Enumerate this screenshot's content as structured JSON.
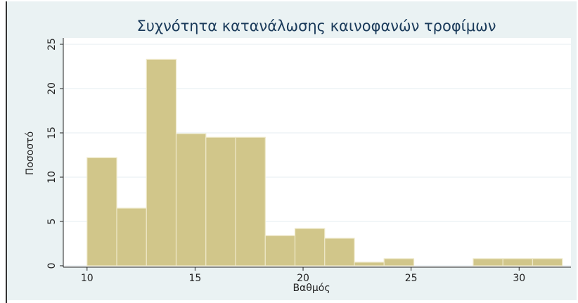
{
  "chart_data": {
    "type": "histogram",
    "title": "Συχνότητα κατανάλωσης καινοφανών τροφίμων",
    "x_label": "Βαθμός",
    "y_label": "Ποσοστό",
    "bins": [
      10,
      11.375,
      12.75,
      14.125,
      15.5,
      16.875,
      18.25,
      19.625,
      21,
      22.375,
      23.75,
      25.125,
      26.5,
      27.875,
      29.25,
      30.625,
      32
    ],
    "values": [
      12.2,
      6.5,
      23.3,
      14.9,
      14.5,
      14.5,
      3.4,
      4.2,
      3.1,
      0.4,
      0.8,
      0,
      0,
      0.8,
      0.8,
      0.8
    ],
    "color": "#d1c68a",
    "xlim": [
      8.9,
      32.4
    ],
    "xticks": [
      10,
      15,
      20,
      25,
      30
    ],
    "ylim": [
      0,
      25
    ],
    "yticks": [
      0,
      5,
      10,
      15,
      20,
      25
    ],
    "grid": true
  }
}
